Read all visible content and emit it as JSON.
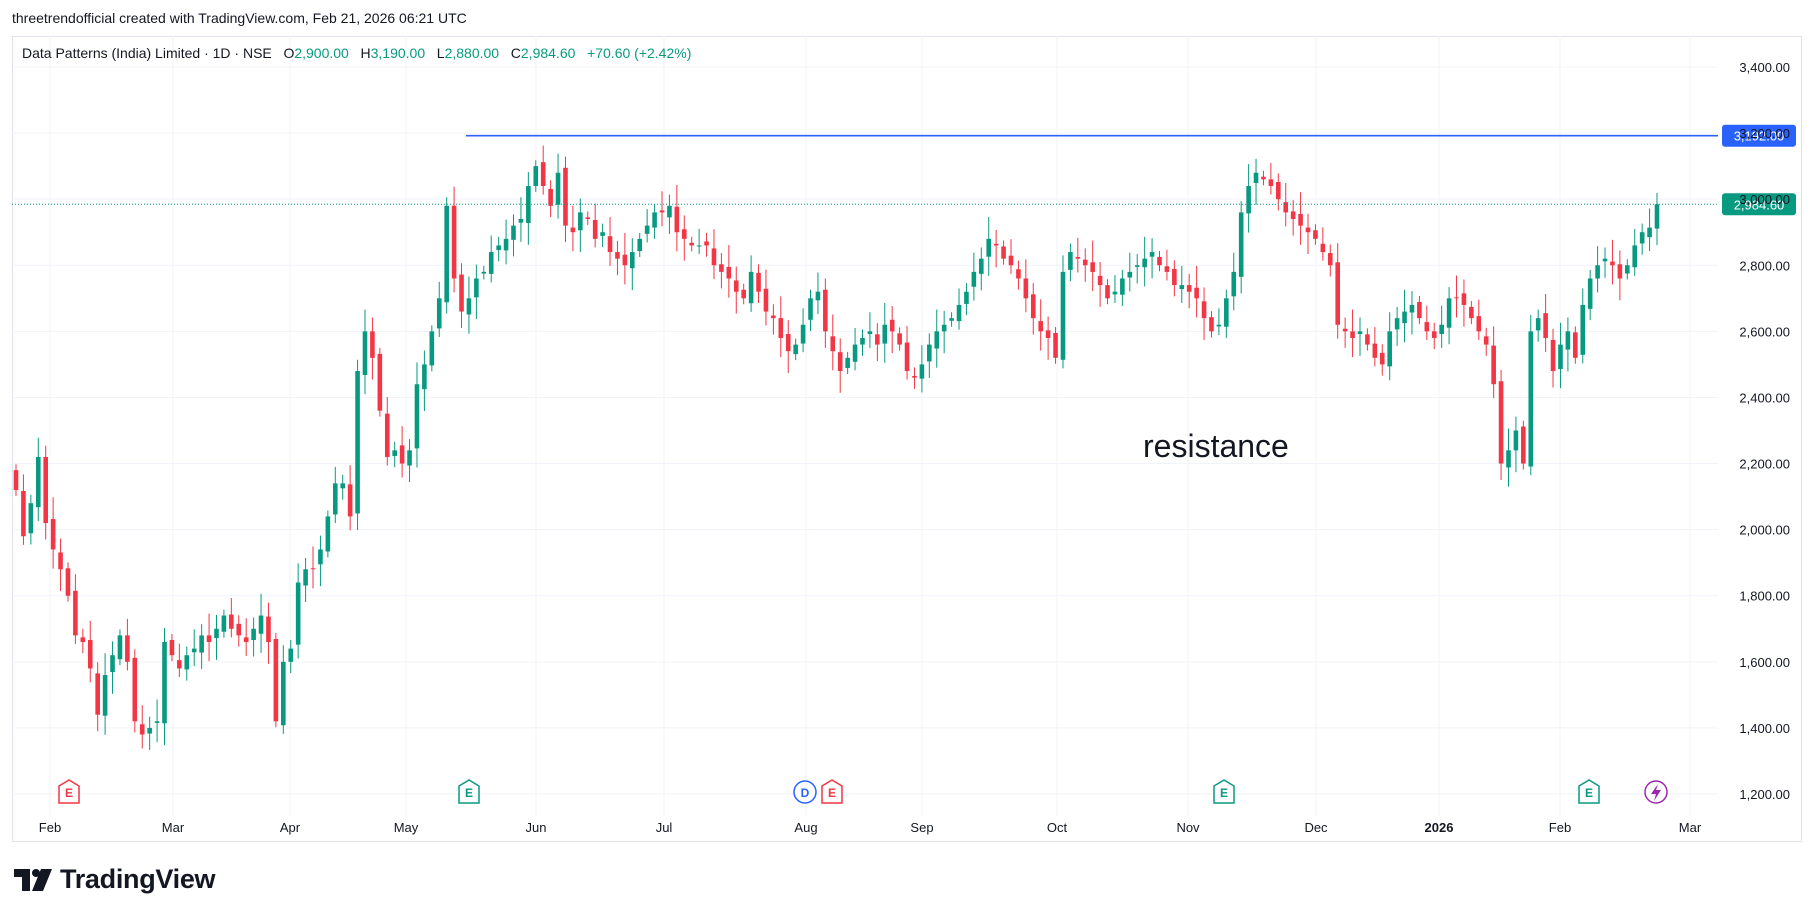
{
  "header": {
    "caption": "threetrendofficial created with TradingView.com, Feb 21, 2026 06:21 UTC"
  },
  "legend": {
    "symbol": "Data Patterns (India) Limited · 1D · NSE",
    "open_label": "O",
    "open": "2,900.00",
    "high_label": "H",
    "high": "3,190.00",
    "low_label": "L",
    "low": "2,880.00",
    "close_label": "C",
    "close": "2,984.60",
    "change": "+70.60 (+2.42%)"
  },
  "footer": {
    "brand": "TradingView"
  },
  "colors": {
    "up": "#089981",
    "down": "#f23645",
    "resistance": "#2962ff",
    "earnings_future": "#089981",
    "dividend": "#2962ff",
    "split": "#9c27b0"
  },
  "chart_data": {
    "type": "candlestick",
    "y_axis": {
      "min": 1200,
      "max": 3400,
      "ticks": [
        "1,200.00",
        "1,400.00",
        "1,600.00",
        "1,800.00",
        "2,000.00",
        "2,200.00",
        "2,400.00",
        "2,600.00",
        "2,800.00",
        "3,000.00",
        "3,200.00",
        "3,400.00"
      ]
    },
    "x_axis": {
      "ticks": [
        "Feb",
        "Mar",
        "Apr",
        "May",
        "Jun",
        "Jul",
        "Aug",
        "Sep",
        "Oct",
        "Nov",
        "Dec",
        "2026",
        "Feb",
        "Mar"
      ]
    },
    "horizontal_line": {
      "value": 3192,
      "label": "3,192.00",
      "start": "2025-05-16"
    },
    "last_price": {
      "value": 2984.6,
      "label": "2,984.60"
    },
    "annotation": "resistance",
    "event_markers": [
      "E",
      "E",
      "D",
      "E",
      "E",
      "E"
    ],
    "closes": [
      2120,
      1980,
      2080,
      2220,
      2020,
      1940,
      1880,
      1800,
      1680,
      1660,
      1580,
      1440,
      1560,
      1620,
      1680,
      1600,
      1420,
      1380,
      1400,
      1420,
      1660,
      1620,
      1580,
      1620,
      1640,
      1680,
      1660,
      1700,
      1740,
      1700,
      1680,
      1660,
      1700,
      1740,
      1660,
      1420,
      1600,
      1640,
      1840,
      1880,
      1880,
      1940,
      2040,
      2140,
      2140,
      2040,
      2480,
      2600,
      2520,
      2360,
      2220,
      2240,
      2200,
      2240,
      2440,
      2500,
      2600,
      2700,
      2980,
      2760,
      2660,
      2700,
      2760,
      2780,
      2840,
      2860,
      2880,
      2920,
      2940,
      3040,
      3100,
      3040,
      2980,
      3080,
      2920,
      2900,
      2960,
      2940,
      2880,
      2900,
      2840,
      2820,
      2800,
      2840,
      2880,
      2920,
      2960,
      2960,
      2980,
      2900,
      2880,
      2860,
      2860,
      2860,
      2800,
      2780,
      2760,
      2720,
      2700,
      2780,
      2720,
      2660,
      2640,
      2580,
      2540,
      2560,
      2620,
      2700,
      2720,
      2600,
      2540,
      2480,
      2520,
      2560,
      2580,
      2600,
      2560,
      2620,
      2600,
      2560,
      2480,
      2460,
      2500,
      2560,
      2600,
      2620,
      2640,
      2680,
      2720,
      2780,
      2820,
      2880,
      2860,
      2820,
      2800,
      2760,
      2700,
      2640,
      2600,
      2580,
      2520,
      2780,
      2840,
      2820,
      2800,
      2780,
      2740,
      2700,
      2720,
      2760,
      2780,
      2800,
      2820,
      2840,
      2800,
      2780,
      2740,
      2740,
      2720,
      2700,
      2640,
      2600,
      2620,
      2700,
      2780,
      2960,
      3040,
      3080,
      3060,
      3040,
      3000,
      2960,
      2940,
      2920,
      2900,
      2880,
      2840,
      2800,
      2620,
      2600,
      2580,
      2600,
      2560,
      2520,
      2500,
      2600,
      2640,
      2660,
      2680,
      2640,
      2600,
      2580,
      2620,
      2700,
      2700,
      2680,
      2640,
      2600,
      2560,
      2440,
      2200,
      2240,
      2300,
      2200,
      2600,
      2640,
      2580,
      2480,
      2560,
      2600,
      2520,
      2680,
      2760,
      2800,
      2820,
      2800,
      2760,
      2800,
      2860,
      2900,
      2914.0,
      2984.6
    ]
  }
}
